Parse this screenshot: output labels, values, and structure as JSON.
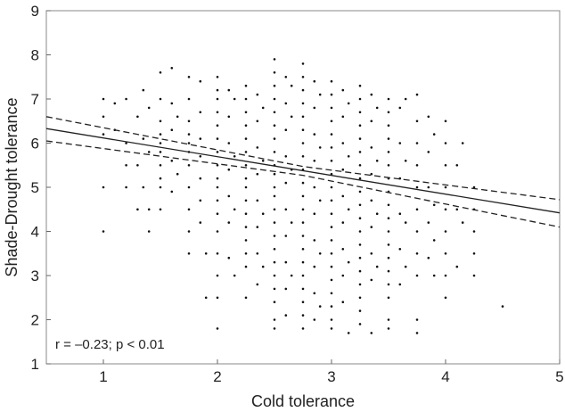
{
  "chart_data": {
    "type": "scatter",
    "xlabel": "Cold tolerance",
    "ylabel": "Shade-Drought tolerance",
    "annotation": "r = –0.23; p < 0.01",
    "xlim": [
      0.5,
      5
    ],
    "ylim": [
      1,
      9
    ],
    "x_ticks": [
      1,
      2,
      3,
      4,
      5
    ],
    "y_ticks": [
      1,
      2,
      3,
      4,
      5,
      6,
      7,
      8,
      9
    ],
    "grid": false,
    "regression": {
      "fit": [
        [
          0.5,
          6.33
        ],
        [
          5,
          4.42
        ]
      ],
      "ci_upper": [
        [
          0.5,
          6.6
        ],
        [
          2.75,
          5.47
        ],
        [
          5,
          4.72
        ]
      ],
      "ci_lower": [
        [
          0.5,
          6.05
        ],
        [
          2.75,
          5.27
        ],
        [
          5,
          4.1
        ]
      ]
    },
    "points": [
      [
        1,
        7
      ],
      [
        1,
        6.6
      ],
      [
        1,
        6.2
      ],
      [
        1,
        5
      ],
      [
        1,
        4
      ],
      [
        1.1,
        6.9
      ],
      [
        1.1,
        6.3
      ],
      [
        1.2,
        7
      ],
      [
        1.2,
        6
      ],
      [
        1.2,
        5.5
      ],
      [
        1.2,
        5
      ],
      [
        1.3,
        6.6
      ],
      [
        1.3,
        5.5
      ],
      [
        1.3,
        4.5
      ],
      [
        1.35,
        7.2
      ],
      [
        1.35,
        6.1
      ],
      [
        1.35,
        5
      ],
      [
        1.4,
        6.8
      ],
      [
        1.4,
        5.8
      ],
      [
        1.4,
        4.5
      ],
      [
        1.4,
        4
      ],
      [
        1.5,
        7.6
      ],
      [
        1.5,
        7
      ],
      [
        1.5,
        6.5
      ],
      [
        1.5,
        6.2
      ],
      [
        1.5,
        6
      ],
      [
        1.5,
        5.8
      ],
      [
        1.5,
        5.5
      ],
      [
        1.5,
        5.2
      ],
      [
        1.5,
        5
      ],
      [
        1.5,
        4.5
      ],
      [
        1.6,
        7.7
      ],
      [
        1.6,
        6.9
      ],
      [
        1.6,
        6.3
      ],
      [
        1.6,
        5.6
      ],
      [
        1.6,
        4.9
      ],
      [
        1.65,
        6.6
      ],
      [
        1.65,
        5.3
      ],
      [
        1.75,
        7.5
      ],
      [
        1.75,
        7
      ],
      [
        1.75,
        6.5
      ],
      [
        1.75,
        6.2
      ],
      [
        1.75,
        6
      ],
      [
        1.75,
        5.8
      ],
      [
        1.75,
        5.5
      ],
      [
        1.75,
        5
      ],
      [
        1.75,
        4.5
      ],
      [
        1.75,
        4
      ],
      [
        1.75,
        3.5
      ],
      [
        1.85,
        7.4
      ],
      [
        1.85,
        6.7
      ],
      [
        1.85,
        6.1
      ],
      [
        1.85,
        5.7
      ],
      [
        1.85,
        5.2
      ],
      [
        1.85,
        4.7
      ],
      [
        1.85,
        4.2
      ],
      [
        1.9,
        3.5
      ],
      [
        1.9,
        2.5
      ],
      [
        2,
        7.5
      ],
      [
        2,
        7.2
      ],
      [
        2,
        7
      ],
      [
        2,
        6.7
      ],
      [
        2,
        6.4
      ],
      [
        2,
        6.1
      ],
      [
        2,
        5.8
      ],
      [
        2,
        5.5
      ],
      [
        2,
        5.2
      ],
      [
        2,
        5
      ],
      [
        2,
        4.7
      ],
      [
        2,
        4.4
      ],
      [
        2,
        4
      ],
      [
        2,
        3.5
      ],
      [
        2,
        3
      ],
      [
        2,
        2.5
      ],
      [
        2,
        1.8
      ],
      [
        2.1,
        7.2
      ],
      [
        2.1,
        6.6
      ],
      [
        2.1,
        6
      ],
      [
        2.1,
        5.4
      ],
      [
        2.1,
        4.8
      ],
      [
        2.1,
        4.2
      ],
      [
        2.1,
        3.4
      ],
      [
        2.15,
        7
      ],
      [
        2.15,
        5.7
      ],
      [
        2.15,
        4.5
      ],
      [
        2.15,
        3
      ],
      [
        2.25,
        7.3
      ],
      [
        2.25,
        7
      ],
      [
        2.25,
        6.7
      ],
      [
        2.25,
        6.4
      ],
      [
        2.25,
        6.1
      ],
      [
        2.25,
        5.8
      ],
      [
        2.25,
        5.5
      ],
      [
        2.25,
        5.2
      ],
      [
        2.25,
        5
      ],
      [
        2.25,
        4.7
      ],
      [
        2.25,
        4.4
      ],
      [
        2.25,
        4.1
      ],
      [
        2.25,
        3.8
      ],
      [
        2.25,
        3.5
      ],
      [
        2.25,
        3.2
      ],
      [
        2.25,
        2.5
      ],
      [
        2.35,
        7.1
      ],
      [
        2.35,
        6.5
      ],
      [
        2.35,
        5.9
      ],
      [
        2.35,
        5.3
      ],
      [
        2.35,
        4.7
      ],
      [
        2.35,
        4.1
      ],
      [
        2.35,
        3.5
      ],
      [
        2.35,
        2.8
      ],
      [
        2.4,
        6.8
      ],
      [
        2.4,
        5.6
      ],
      [
        2.4,
        4.4
      ],
      [
        2.4,
        3.2
      ],
      [
        2.5,
        7.9
      ],
      [
        2.5,
        7.6
      ],
      [
        2.5,
        7.3
      ],
      [
        2.5,
        7
      ],
      [
        2.5,
        6.7
      ],
      [
        2.5,
        6.4
      ],
      [
        2.5,
        6.1
      ],
      [
        2.5,
        5.8
      ],
      [
        2.5,
        5.5
      ],
      [
        2.5,
        5.3
      ],
      [
        2.5,
        5
      ],
      [
        2.5,
        4.8
      ],
      [
        2.5,
        4.5
      ],
      [
        2.5,
        4.2
      ],
      [
        2.5,
        3.9
      ],
      [
        2.5,
        3.6
      ],
      [
        2.5,
        3.3
      ],
      [
        2.5,
        3
      ],
      [
        2.5,
        2.7
      ],
      [
        2.5,
        2.4
      ],
      [
        2.5,
        2
      ],
      [
        2.5,
        1.8
      ],
      [
        2.6,
        7.5
      ],
      [
        2.6,
        6.9
      ],
      [
        2.6,
        6.3
      ],
      [
        2.6,
        5.7
      ],
      [
        2.6,
        5.1
      ],
      [
        2.6,
        4.5
      ],
      [
        2.6,
        3.9
      ],
      [
        2.6,
        3.3
      ],
      [
        2.6,
        2.7
      ],
      [
        2.6,
        2.1
      ],
      [
        2.65,
        7.3
      ],
      [
        2.65,
        6.6
      ],
      [
        2.65,
        5.4
      ],
      [
        2.65,
        4.2
      ],
      [
        2.65,
        3
      ],
      [
        2.75,
        7.8
      ],
      [
        2.75,
        7.5
      ],
      [
        2.75,
        7.2
      ],
      [
        2.75,
        6.9
      ],
      [
        2.75,
        6.6
      ],
      [
        2.75,
        6.3
      ],
      [
        2.75,
        6
      ],
      [
        2.75,
        5.7
      ],
      [
        2.75,
        5.4
      ],
      [
        2.75,
        5.1
      ],
      [
        2.75,
        4.8
      ],
      [
        2.75,
        4.5
      ],
      [
        2.75,
        4.2
      ],
      [
        2.75,
        3.9
      ],
      [
        2.75,
        3.6
      ],
      [
        2.75,
        3.3
      ],
      [
        2.75,
        3
      ],
      [
        2.75,
        2.7
      ],
      [
        2.75,
        2.4
      ],
      [
        2.75,
        2.1
      ],
      [
        2.75,
        1.8
      ],
      [
        2.85,
        7.4
      ],
      [
        2.85,
        6.8
      ],
      [
        2.85,
        6.2
      ],
      [
        2.85,
        5.6
      ],
      [
        2.85,
        5
      ],
      [
        2.85,
        4.4
      ],
      [
        2.85,
        3.8
      ],
      [
        2.85,
        3.2
      ],
      [
        2.85,
        2.6
      ],
      [
        2.85,
        2
      ],
      [
        2.9,
        7.1
      ],
      [
        2.9,
        5.9
      ],
      [
        2.9,
        4.7
      ],
      [
        2.9,
        3.5
      ],
      [
        2.9,
        2.3
      ],
      [
        3,
        7.4
      ],
      [
        3,
        7.1
      ],
      [
        3,
        6.8
      ],
      [
        3,
        6.5
      ],
      [
        3,
        6.2
      ],
      [
        3,
        5.9
      ],
      [
        3,
        5.6
      ],
      [
        3,
        5.3
      ],
      [
        3,
        5
      ],
      [
        3,
        4.7
      ],
      [
        3,
        4.4
      ],
      [
        3,
        4.1
      ],
      [
        3,
        3.8
      ],
      [
        3,
        3.5
      ],
      [
        3,
        3.2
      ],
      [
        3,
        2.9
      ],
      [
        3,
        2.6
      ],
      [
        3,
        2.3
      ],
      [
        3,
        2
      ],
      [
        3,
        1.8
      ],
      [
        3.1,
        7.2
      ],
      [
        3.1,
        6.6
      ],
      [
        3.1,
        6
      ],
      [
        3.1,
        5.4
      ],
      [
        3.1,
        4.8
      ],
      [
        3.1,
        4.2
      ],
      [
        3.1,
        3.6
      ],
      [
        3.1,
        3
      ],
      [
        3.1,
        2.4
      ],
      [
        3.15,
        6.9
      ],
      [
        3.15,
        5.7
      ],
      [
        3.15,
        4.5
      ],
      [
        3.15,
        3.3
      ],
      [
        3.15,
        1.7
      ],
      [
        3.25,
        7.3
      ],
      [
        3.25,
        7
      ],
      [
        3.25,
        6.7
      ],
      [
        3.25,
        6.4
      ],
      [
        3.25,
        6.1
      ],
      [
        3.25,
        5.8
      ],
      [
        3.25,
        5.5
      ],
      [
        3.25,
        5.2
      ],
      [
        3.25,
        4.9
      ],
      [
        3.25,
        4.6
      ],
      [
        3.25,
        4.3
      ],
      [
        3.25,
        4
      ],
      [
        3.25,
        3.7
      ],
      [
        3.25,
        3.4
      ],
      [
        3.25,
        3.1
      ],
      [
        3.25,
        2.8
      ],
      [
        3.25,
        2.5
      ],
      [
        3.25,
        2.2
      ],
      [
        3.25,
        1.9
      ],
      [
        3.35,
        7.1
      ],
      [
        3.35,
        6.5
      ],
      [
        3.35,
        5.9
      ],
      [
        3.35,
        5.3
      ],
      [
        3.35,
        4.7
      ],
      [
        3.35,
        4.1
      ],
      [
        3.35,
        3.5
      ],
      [
        3.35,
        2.9
      ],
      [
        3.35,
        1.7
      ],
      [
        3.4,
        6.8
      ],
      [
        3.4,
        5.6
      ],
      [
        3.4,
        4.4
      ],
      [
        3.4,
        3.2
      ],
      [
        3.5,
        7
      ],
      [
        3.5,
        6.7
      ],
      [
        3.5,
        6.4
      ],
      [
        3.5,
        6.1
      ],
      [
        3.5,
        5.8
      ],
      [
        3.5,
        5.5
      ],
      [
        3.5,
        5.2
      ],
      [
        3.5,
        4.9
      ],
      [
        3.5,
        4.6
      ],
      [
        3.5,
        4.3
      ],
      [
        3.5,
        4
      ],
      [
        3.5,
        3.7
      ],
      [
        3.5,
        3.4
      ],
      [
        3.5,
        3.1
      ],
      [
        3.5,
        2.8
      ],
      [
        3.5,
        2.5
      ],
      [
        3.5,
        2
      ],
      [
        3.5,
        1.8
      ],
      [
        3.6,
        6.8
      ],
      [
        3.6,
        6
      ],
      [
        3.6,
        5.2
      ],
      [
        3.6,
        4.4
      ],
      [
        3.6,
        3.6
      ],
      [
        3.6,
        2.8
      ],
      [
        3.65,
        7
      ],
      [
        3.65,
        5.6
      ],
      [
        3.65,
        4.2
      ],
      [
        3.65,
        3.2
      ],
      [
        3.75,
        7.1
      ],
      [
        3.75,
        6.5
      ],
      [
        3.75,
        6
      ],
      [
        3.75,
        5.5
      ],
      [
        3.75,
        5
      ],
      [
        3.75,
        4.5
      ],
      [
        3.75,
        4
      ],
      [
        3.75,
        3.5
      ],
      [
        3.75,
        3
      ],
      [
        3.75,
        2
      ],
      [
        3.75,
        1.7
      ],
      [
        3.85,
        6.6
      ],
      [
        3.85,
        5.8
      ],
      [
        3.85,
        5
      ],
      [
        3.85,
        4.2
      ],
      [
        3.85,
        3.4
      ],
      [
        3.9,
        6.2
      ],
      [
        3.9,
        4.6
      ],
      [
        3.9,
        3.8
      ],
      [
        3.9,
        3
      ],
      [
        4,
        6.5
      ],
      [
        4,
        6
      ],
      [
        4,
        5.5
      ],
      [
        4,
        5
      ],
      [
        4,
        4.5
      ],
      [
        4,
        4
      ],
      [
        4,
        3.5
      ],
      [
        4,
        3
      ],
      [
        4,
        2.5
      ],
      [
        4.1,
        5.5
      ],
      [
        4.1,
        4.5
      ],
      [
        4.1,
        3.2
      ],
      [
        4.15,
        6
      ],
      [
        4.15,
        4.2
      ],
      [
        4.25,
        5
      ],
      [
        4.25,
        4.5
      ],
      [
        4.25,
        4
      ],
      [
        4.25,
        3.5
      ],
      [
        4.25,
        3
      ],
      [
        4.5,
        2.3
      ]
    ]
  }
}
